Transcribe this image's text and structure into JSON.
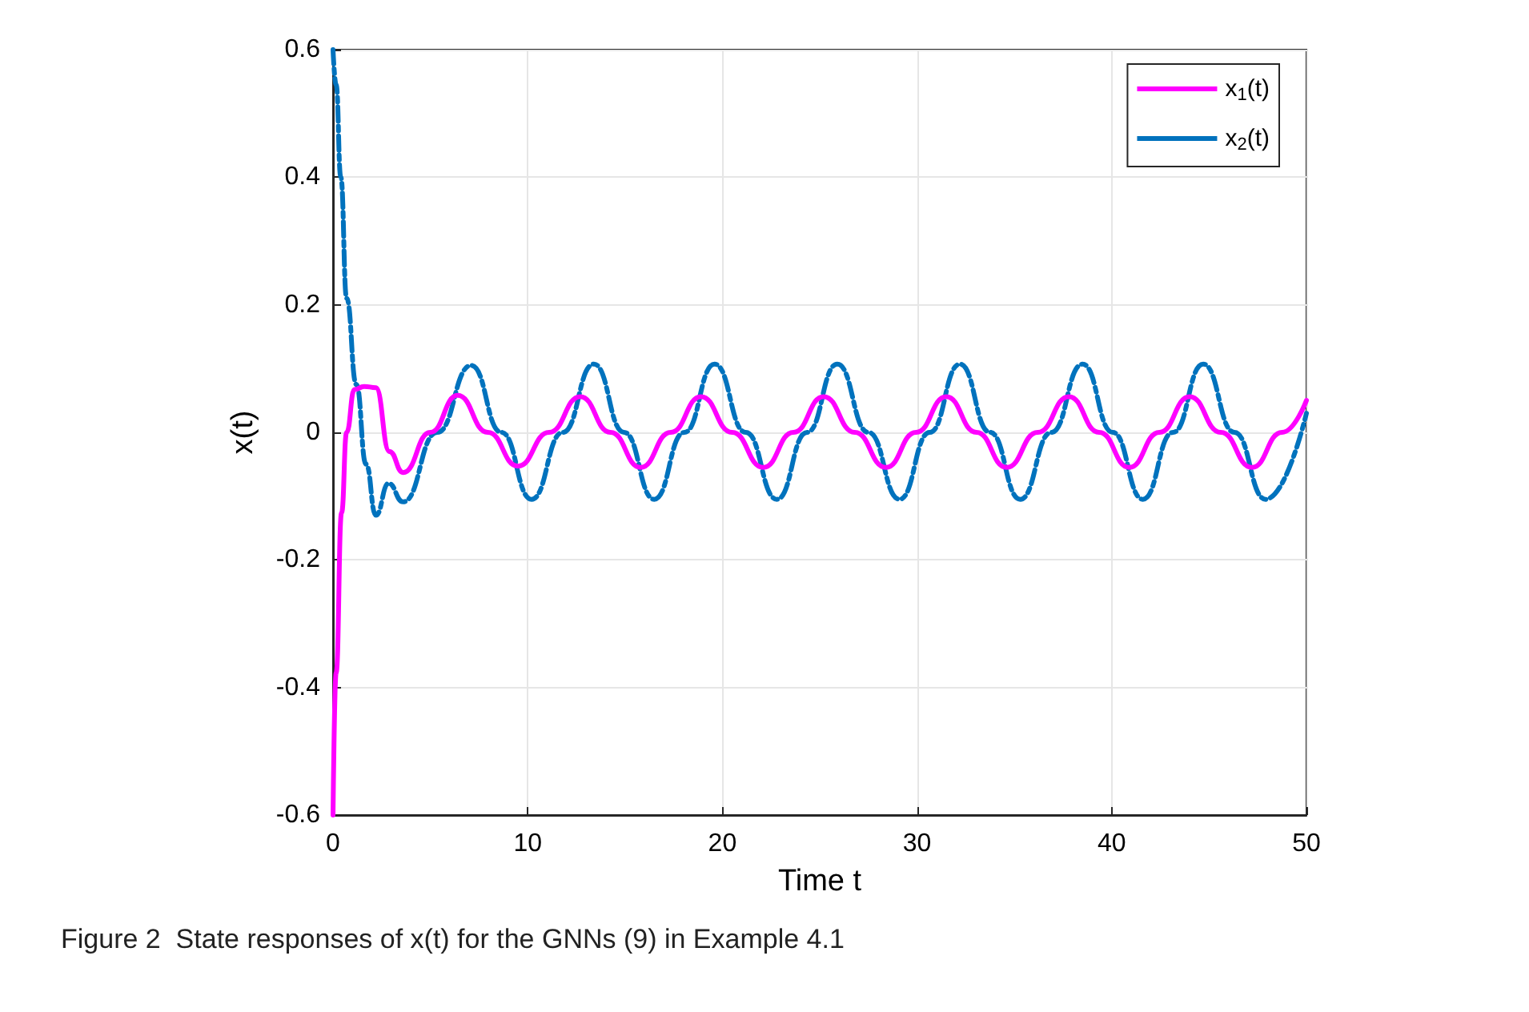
{
  "chart_data": {
    "type": "line",
    "xlabel": "Time t",
    "ylabel": "x(t)",
    "xlim": [
      0,
      50
    ],
    "xticks": [
      0,
      10,
      20,
      30,
      40,
      50
    ],
    "ylim": [
      -0.6,
      0.6
    ],
    "yticks": [
      -0.6,
      -0.4,
      -0.2,
      0,
      0.2,
      0.4,
      0.6
    ],
    "grid": true,
    "legend": "top right",
    "marker": "none",
    "annotations": [
      "Figure 2  State responses of x(t) for the GNNs (9) in Example 4.1"
    ],
    "series": [
      {
        "name": "x$_{1}$(t)",
        "color": "#ff00ff",
        "line_style": "solid",
        "x": [
          0,
          0.16,
          0.44,
          0.7,
          1.1,
          1.6,
          2.2,
          2.9,
          3.6,
          5.0,
          6.4,
          7.95,
          9.5,
          11.1,
          12.7,
          14.25,
          15.8,
          17.35,
          18.9,
          20.5,
          22.1,
          23.65,
          25.2,
          26.8,
          28.4,
          29.95,
          31.5,
          33.05,
          34.6,
          36.2,
          37.8,
          39.35,
          40.9,
          42.45,
          44.0,
          45.6,
          47.2,
          48.75,
          50
        ],
        "values": [
          -0.6,
          -0.377,
          -0.126,
          0,
          0.067,
          0.072,
          0.07,
          -0.03,
          -0.063,
          0,
          0.058,
          0,
          -0.053,
          0,
          0.056,
          0,
          -0.055,
          0,
          0.056,
          0,
          -0.055,
          0,
          0.056,
          0,
          -0.055,
          0,
          0.056,
          0,
          -0.055,
          0,
          0.056,
          0,
          -0.055,
          0,
          0.056,
          0,
          -0.055,
          0,
          0.05
        ]
      },
      {
        "name": "x$_{2}$(t)",
        "color": "#0072bd",
        "line_style": "dashed",
        "x": [
          0,
          0.16,
          0.4,
          0.7,
          1.2,
          1.7,
          2.2,
          2.85,
          3.6,
          5.35,
          7.1,
          8.65,
          10.2,
          11.8,
          13.4,
          14.95,
          16.5,
          18.05,
          19.6,
          21.2,
          22.8,
          24.35,
          25.9,
          27.5,
          29.1,
          30.65,
          32.2,
          33.75,
          35.3,
          36.9,
          38.5,
          40.05,
          41.6,
          43.15,
          44.7,
          46.3,
          47.9,
          50
        ],
        "values": [
          0.6,
          0.545,
          0.4,
          0.21,
          0.075,
          -0.05,
          -0.13,
          -0.08,
          -0.109,
          0,
          0.105,
          0,
          -0.105,
          0,
          0.107,
          0,
          -0.105,
          0,
          0.107,
          0,
          -0.105,
          0,
          0.107,
          0,
          -0.105,
          0,
          0.107,
          0,
          -0.105,
          0,
          0.107,
          0,
          -0.105,
          0,
          0.107,
          0,
          -0.105,
          0.03
        ]
      }
    ]
  }
}
